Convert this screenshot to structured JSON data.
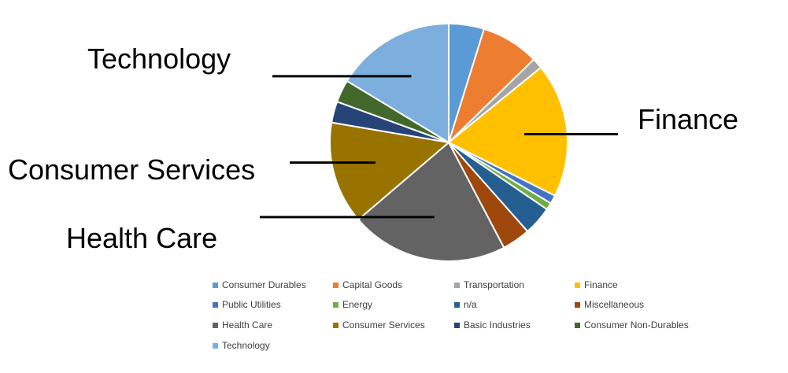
{
  "chart_data": {
    "type": "pie",
    "categories": [
      "Consumer Durables",
      "Capital Goods",
      "Transportation",
      "Finance",
      "Public Utilities",
      "Energy",
      "n/a",
      "Miscellaneous",
      "Health Care",
      "Consumer Services",
      "Basic Industries",
      "Consumer Non-Durables",
      "Technology"
    ],
    "values": [
      5.0,
      8.2,
      1.5,
      19.0,
      1.2,
      1.0,
      4.1,
      4.0,
      22.3,
      14.5,
      3.0,
      3.2,
      17.0
    ],
    "unit": "%",
    "colors": [
      "#5B9BD5",
      "#ED7D31",
      "#A5A5A5",
      "#FFC000",
      "#4472C4",
      "#70AD47",
      "#255E91",
      "#9E480E",
      "#636363",
      "#997300",
      "#264478",
      "#43682B",
      "#7CAFDD"
    ],
    "title": "",
    "legend_position": "bottom",
    "annotations": [
      {
        "label": "Technology",
        "category": "Technology"
      },
      {
        "label": "Finance",
        "category": "Finance"
      },
      {
        "label": "Consumer Services",
        "category": "Consumer Services"
      },
      {
        "label": "Health Care",
        "category": "Health Care"
      }
    ]
  }
}
